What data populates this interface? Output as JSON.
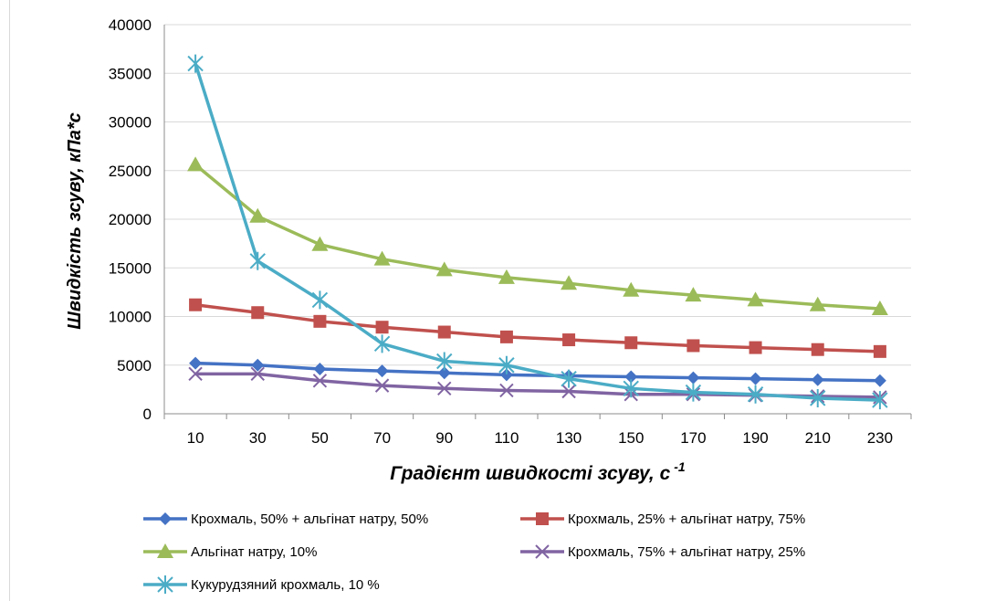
{
  "chart_data": {
    "type": "line",
    "xlabel": "Градієнт швидкості зсуву, с",
    "xlabel_sup": "-1",
    "ylabel": "Швидкість зсуву, кПа*с",
    "ylim": [
      0,
      40000
    ],
    "yticks": [
      0,
      5000,
      10000,
      15000,
      20000,
      25000,
      30000,
      35000,
      40000
    ],
    "x": [
      10,
      30,
      50,
      70,
      90,
      110,
      130,
      150,
      170,
      190,
      210,
      230
    ],
    "grid": true,
    "legend_position": "bottom",
    "series": [
      {
        "name": "Крохмаль, 50% + альгінат натру, 50%",
        "color": "#4472C4",
        "marker": "diamond",
        "values": [
          5200,
          5000,
          4600,
          4400,
          4200,
          4000,
          3900,
          3800,
          3700,
          3600,
          3500,
          3400
        ]
      },
      {
        "name": "Крохмаль, 25% + альгінат натру, 75%",
        "color": "#C0504D",
        "marker": "square",
        "values": [
          11200,
          10400,
          9500,
          8900,
          8400,
          7900,
          7600,
          7300,
          7000,
          6800,
          6600,
          6400
        ]
      },
      {
        "name": "Альгінат натру, 10%",
        "color": "#9BBB59",
        "marker": "triangle",
        "values": [
          25600,
          20300,
          17400,
          15900,
          14800,
          14000,
          13400,
          12700,
          12200,
          11700,
          11200,
          10800
        ]
      },
      {
        "name": "Крохмаль, 75% + альгінат натру, 25%",
        "color": "#8064A2",
        "marker": "x",
        "values": [
          4100,
          4100,
          3400,
          2900,
          2600,
          2400,
          2300,
          2000,
          2000,
          1900,
          1800,
          1700
        ]
      },
      {
        "name": "Кукурудзяний крохмаль, 10 %",
        "color": "#4BACC6",
        "marker": "star",
        "values": [
          36000,
          15700,
          11700,
          7200,
          5400,
          5000,
          3600,
          2600,
          2200,
          2000,
          1600,
          1400
        ]
      }
    ]
  }
}
